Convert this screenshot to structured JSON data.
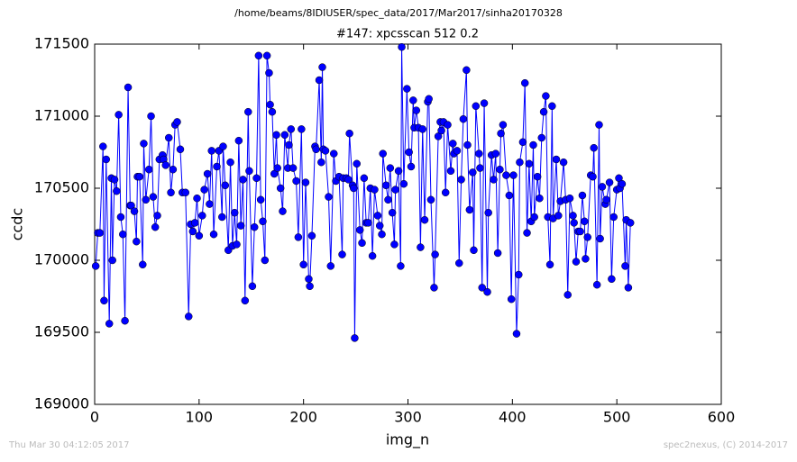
{
  "chart_data": {
    "type": "line",
    "path_title": "/home/beams/8IDIUSER/spec_data/2017/Mar2017/sinha20170328",
    "title": "#147: xpcsscan 512 0.2",
    "x_label": "img_n",
    "y_label": "ccdc",
    "footer_left": "Thu Mar 30 04:12:05 2017",
    "footer_right": "spec2nexus, (C) 2014-2017",
    "color": "#0000ff",
    "markers": true,
    "xlim": [
      0,
      600
    ],
    "xticks": [
      0,
      100,
      200,
      300,
      400,
      500,
      600
    ],
    "ylim": [
      169000,
      171500
    ],
    "yticks": [
      169000,
      169500,
      170000,
      170500,
      171000,
      171500
    ],
    "x": [
      1,
      3,
      5,
      8,
      9,
      11,
      14,
      16,
      17,
      19,
      21,
      23,
      25,
      27,
      29,
      32,
      34,
      35,
      38,
      40,
      41,
      43,
      46,
      47,
      49,
      52,
      54,
      56,
      58,
      60,
      62,
      65,
      66,
      68,
      71,
      73,
      75,
      77,
      79,
      82,
      84,
      87,
      90,
      92,
      94,
      96,
      98,
      100,
      103,
      105,
      108,
      110,
      112,
      114,
      117,
      119,
      122,
      123,
      125,
      128,
      130,
      132,
      134,
      136,
      138,
      140,
      142,
      144,
      147,
      148,
      151,
      153,
      155,
      157,
      159,
      161,
      163,
      165,
      167,
      168,
      170,
      172,
      174,
      175,
      178,
      180,
      182,
      185,
      186,
      188,
      190,
      193,
      195,
      198,
      200,
      202,
      205,
      206,
      208,
      211,
      212,
      215,
      217,
      218,
      219,
      221,
      224,
      226,
      229,
      231,
      234,
      237,
      238,
      241,
      243,
      244,
      247,
      248,
      249,
      251,
      254,
      256,
      258,
      260,
      262,
      264,
      266,
      268,
      271,
      273,
      275,
      276,
      279,
      281,
      283,
      285,
      287,
      288,
      291,
      293,
      294,
      296,
      299,
      301,
      303,
      305,
      306,
      308,
      310,
      312,
      314,
      316,
      319,
      320,
      322,
      325,
      326,
      329,
      331,
      332,
      334,
      336,
      338,
      341,
      343,
      344,
      347,
      349,
      351,
      353,
      356,
      357,
      359,
      362,
      363,
      365,
      368,
      369,
      371,
      373,
      376,
      377,
      380,
      382,
      384,
      386,
      388,
      389,
      391,
      394,
      397,
      399,
      401,
      404,
      406,
      407,
      410,
      412,
      414,
      416,
      418,
      420,
      421,
      424,
      426,
      428,
      430,
      432,
      434,
      436,
      438,
      439,
      442,
      444,
      446,
      449,
      451,
      453,
      455,
      458,
      459,
      461,
      463,
      465,
      467,
      469,
      470,
      472,
      475,
      477,
      478,
      481,
      483,
      484,
      486,
      489,
      490,
      493,
      495,
      497,
      500,
      502,
      503,
      505,
      508,
      509,
      511,
      513
    ],
    "values": [
      169960,
      170190,
      170190,
      170790,
      169720,
      170700,
      169560,
      170570,
      170000,
      170560,
      170480,
      171010,
      170300,
      170180,
      169580,
      171200,
      170380,
      170380,
      170340,
      170130,
      170580,
      170580,
      169970,
      170810,
      170420,
      170630,
      171000,
      170440,
      170230,
      170310,
      170700,
      170730,
      170700,
      170660,
      170850,
      170470,
      170630,
      170940,
      170960,
      170770,
      170470,
      170470,
      169610,
      170250,
      170200,
      170260,
      170430,
      170170,
      170310,
      170490,
      170600,
      170390,
      170760,
      170180,
      170650,
      170760,
      170300,
      170790,
      170520,
      170070,
      170680,
      170100,
      170330,
      170110,
      170830,
      170240,
      170560,
      169720,
      171030,
      170620,
      169820,
      170230,
      170570,
      171420,
      170420,
      170270,
      170000,
      171420,
      171300,
      171080,
      171030,
      170600,
      170870,
      170640,
      170500,
      170340,
      170870,
      170640,
      170800,
      170910,
      170640,
      170550,
      170160,
      170910,
      169970,
      170540,
      169870,
      169820,
      170170,
      170790,
      170770,
      171250,
      170680,
      171340,
      170770,
      170760,
      170440,
      169960,
      170740,
      170550,
      170580,
      170040,
      170570,
      170570,
      170560,
      170880,
      170520,
      170500,
      169460,
      170670,
      170210,
      170120,
      170570,
      170260,
      170260,
      170500,
      170030,
      170490,
      170310,
      170240,
      170180,
      170740,
      170520,
      170420,
      170640,
      170330,
      170110,
      170490,
      170620,
      169960,
      171480,
      170530,
      171190,
      170750,
      170650,
      171110,
      170920,
      171040,
      170920,
      170090,
      170910,
      170280,
      171100,
      171120,
      170420,
      169810,
      170040,
      170860,
      170960,
      170900,
      170960,
      170470,
      170940,
      170620,
      170810,
      170740,
      170760,
      169980,
      170560,
      170980,
      171320,
      170800,
      170350,
      170610,
      170070,
      171070,
      170740,
      170640,
      169810,
      171090,
      169780,
      170330,
      170730,
      170560,
      170740,
      170050,
      170630,
      170880,
      170940,
      170590,
      170450,
      169730,
      170590,
      169490,
      169900,
      170680,
      170820,
      171230,
      170190,
      170670,
      170270,
      170800,
      170300,
      170580,
      170430,
      170850,
      171030,
      171140,
      170300,
      169970,
      171070,
      170290,
      170700,
      170310,
      170410,
      170680,
      170420,
      169760,
      170430,
      170310,
      170260,
      169990,
      170200,
      170200,
      170450,
      170270,
      170010,
      170160,
      170590,
      170580,
      170780,
      169830,
      170940,
      170150,
      170510,
      170390,
      170420,
      170540,
      169870,
      170300,
      170490,
      170570,
      170500,
      170530,
      169960,
      170280,
      169810,
      170260
    ]
  }
}
